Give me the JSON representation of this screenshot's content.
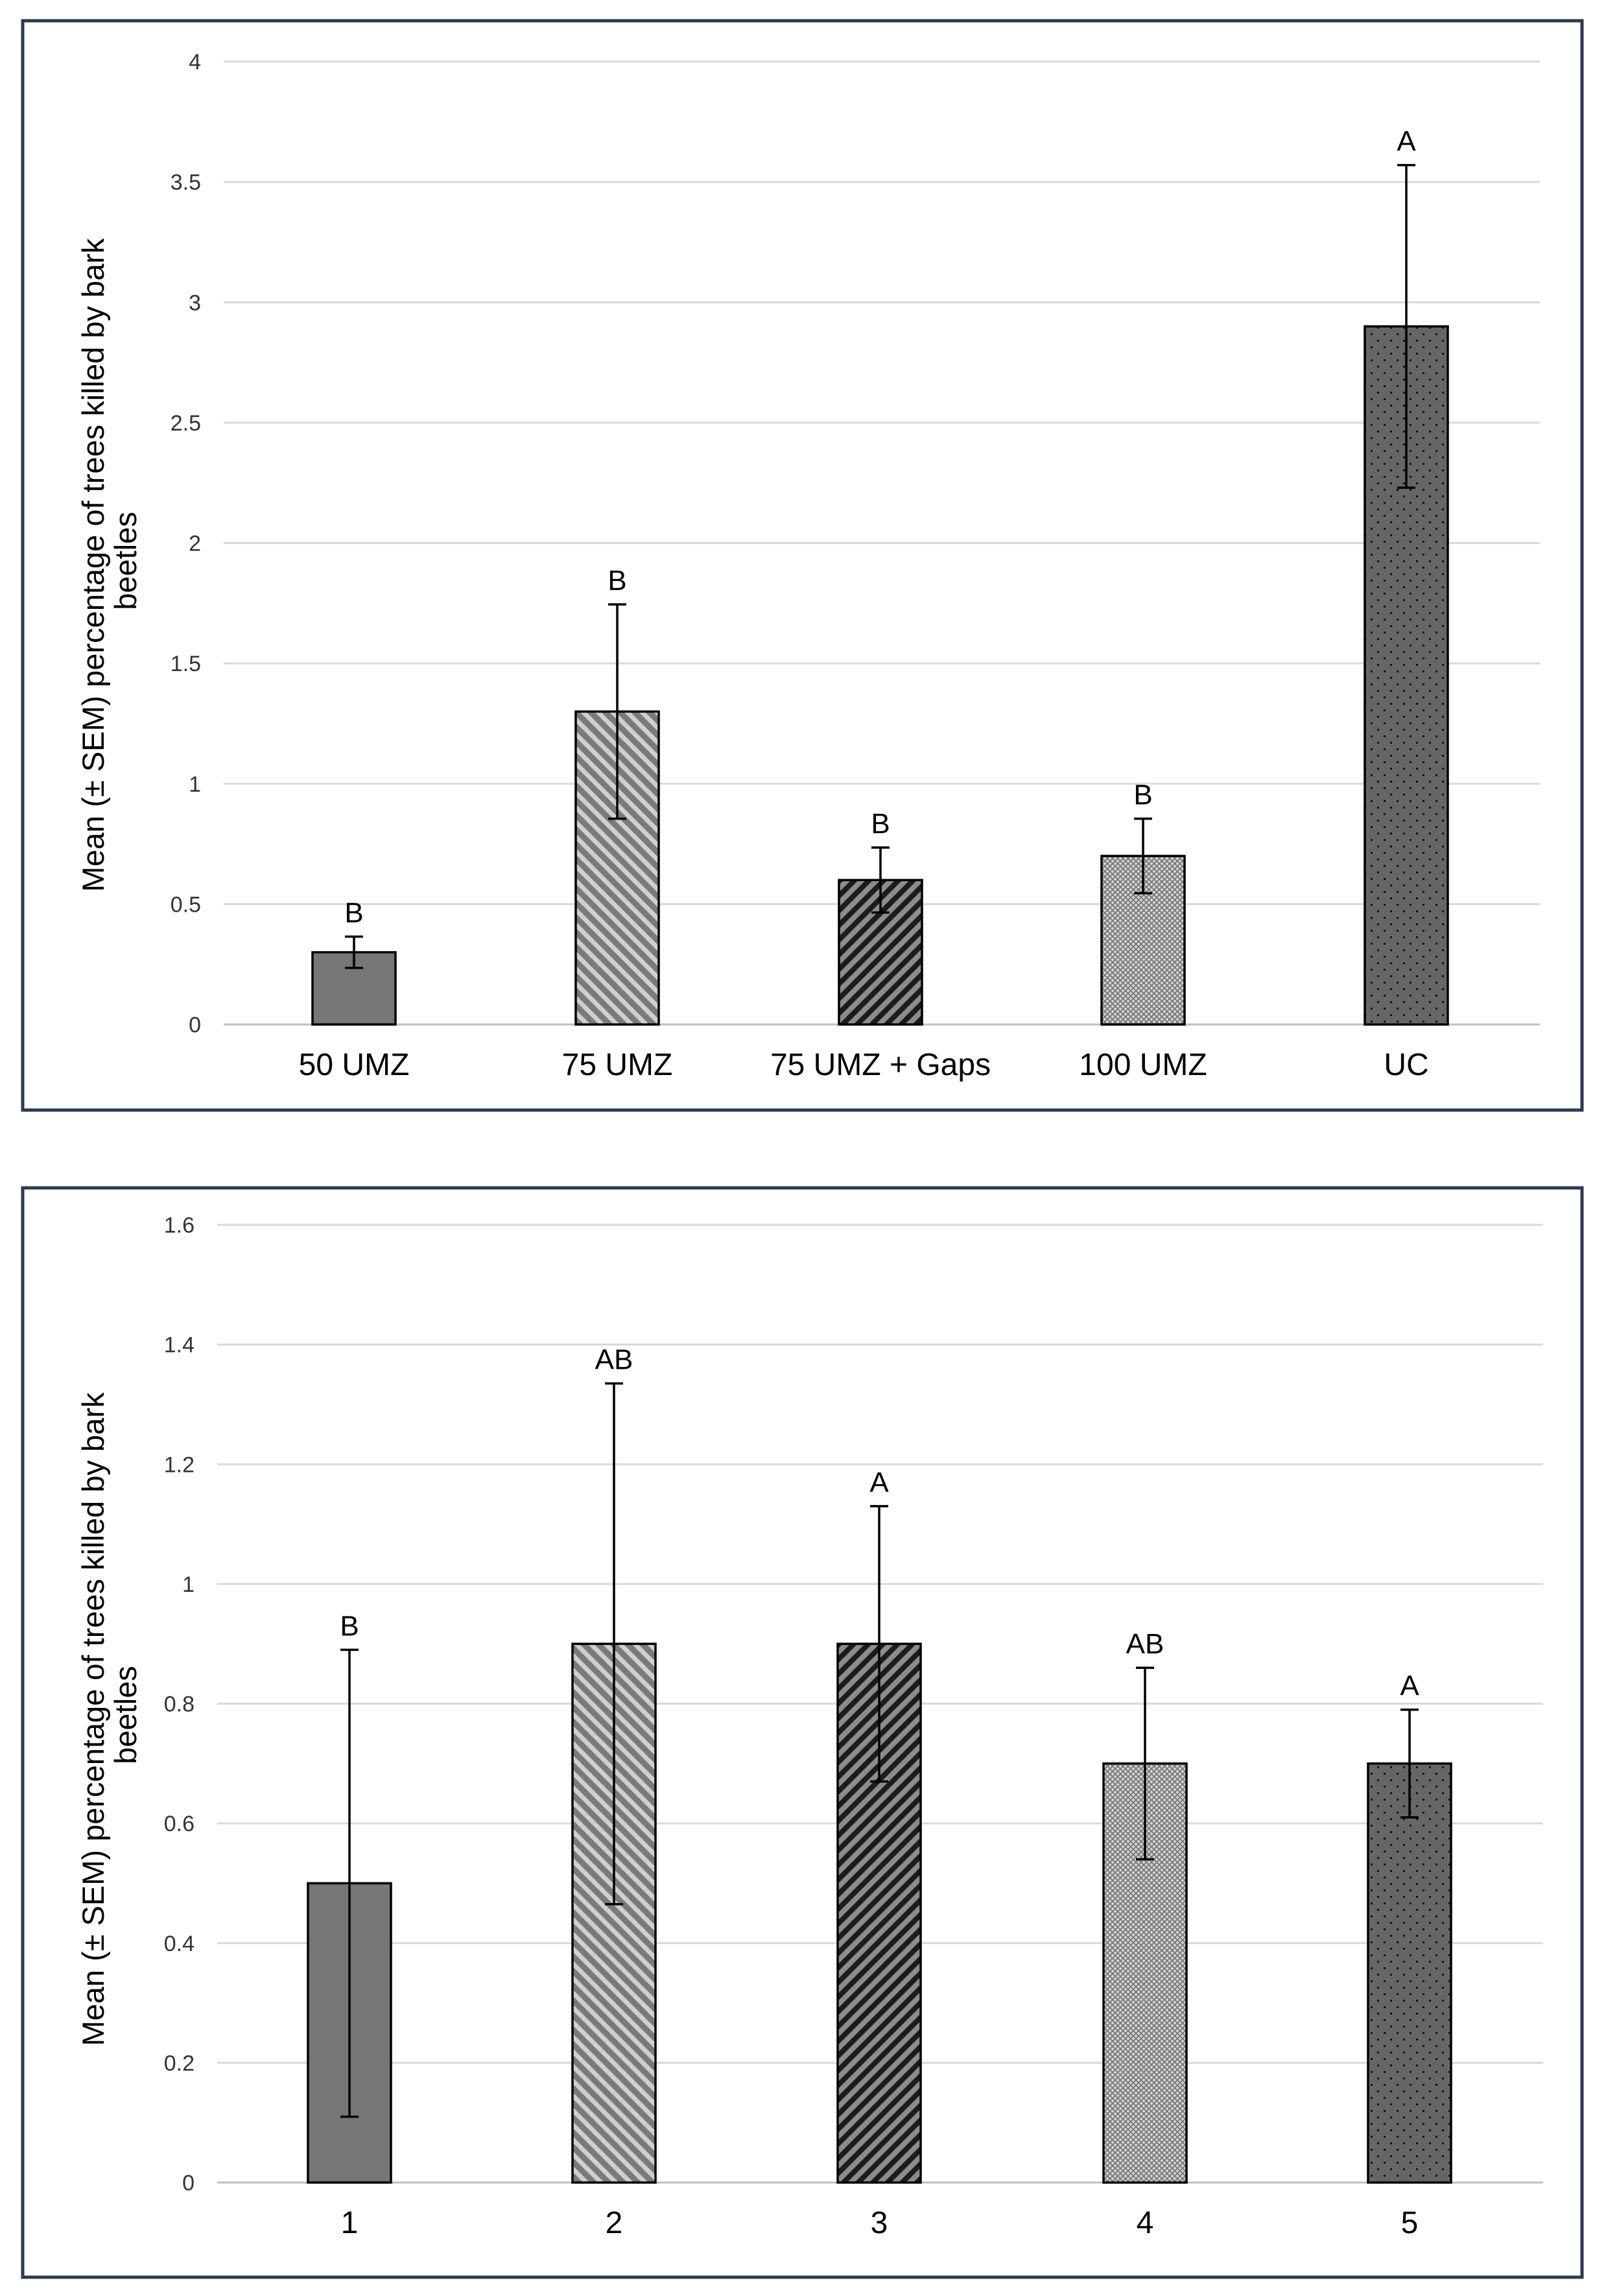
{
  "chart_data": [
    {
      "type": "bar",
      "categories": [
        "50 UMZ",
        "75 UMZ",
        "75 UMZ + Gaps",
        "100 UMZ",
        "UC"
      ],
      "values": [
        0.3,
        1.3,
        0.6,
        0.7,
        2.9
      ],
      "error": [
        0.065,
        0.445,
        0.135,
        0.155,
        0.67
      ],
      "significance": [
        "B",
        "B",
        "B",
        "B",
        "A"
      ],
      "patterns": [
        "solid",
        "diag-light",
        "diag-dark",
        "crosshatch",
        "dots"
      ],
      "ylabel_lines": [
        "Mean (± SEM) percentage of trees killed by bark",
        "beetles"
      ],
      "ylim": [
        0,
        4
      ],
      "yticks": [
        "0",
        "0.5",
        "1",
        "1.5",
        "2",
        "2.5",
        "3",
        "3.5",
        "4"
      ],
      "grid": true
    },
    {
      "type": "bar",
      "categories": [
        "1",
        "2",
        "3",
        "4",
        "5"
      ],
      "values": [
        0.5,
        0.9,
        0.9,
        0.7,
        0.7
      ],
      "error": [
        0.39,
        0.435,
        0.23,
        0.16,
        0.09
      ],
      "significance": [
        "B",
        "AB",
        "A",
        "AB",
        "A"
      ],
      "patterns": [
        "solid",
        "diag-light",
        "diag-dark",
        "crosshatch",
        "dots"
      ],
      "ylabel_lines": [
        "Mean (± SEM) percentage of trees killed by bark",
        "beetles"
      ],
      "ylim": [
        0,
        1.6
      ],
      "yticks": [
        "0",
        "0.2",
        "0.4",
        "0.6",
        "0.8",
        "1",
        "1.2",
        "1.4",
        "1.6"
      ],
      "grid": true
    }
  ],
  "colors": {
    "bar_fill": "#767676",
    "bar_dark": "#555555",
    "stripe_light": "#c8c8c8",
    "stripe_dark": "#1c1c1c",
    "crosshatch_bg": "#d2d2d2",
    "crosshatch_line": "#777777",
    "frame": "#2b3a55",
    "gridline": "#d9d9d9"
  }
}
